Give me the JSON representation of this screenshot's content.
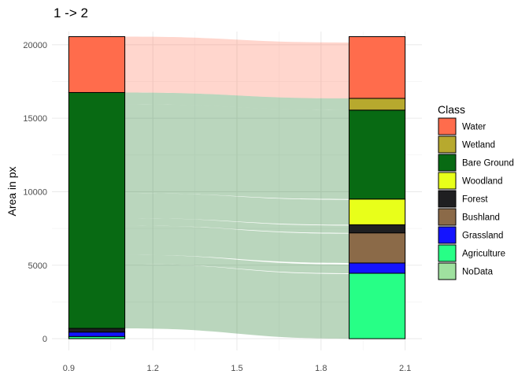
{
  "chart_data": {
    "type": "alluvial",
    "title": "1 -> 2",
    "xlabel": "",
    "ylabel": "Area in px",
    "xlim": [
      0.84,
      2.16
    ],
    "ylim": [
      -800,
      20900
    ],
    "x_ticks": [
      0.9,
      1.2,
      1.5,
      1.8,
      2.1
    ],
    "x_tick_labels": [
      "0.9",
      "1.2",
      "1.5",
      "1.8",
      "2.1"
    ],
    "y_ticks": [
      0,
      5000,
      10000,
      15000,
      20000
    ],
    "y_tick_labels": [
      "0",
      "5000",
      "10000",
      "15000",
      "20000"
    ],
    "grid": true,
    "legend": {
      "title": "Class",
      "position": "right",
      "entries": [
        "Water",
        "Wetland",
        "Bare Ground",
        "Woodland",
        "Forest",
        "Bushland",
        "Grassland",
        "Agriculture",
        "NoData"
      ]
    },
    "colors": {
      "Water": "#ff6c4c",
      "Wetland": "#b7a92e",
      "Bare Ground": "#086a13",
      "Woodland": "#e8ff1a",
      "Forest": "#1f1f21",
      "Bushland": "#8b6a48",
      "Grassland": "#1414ff",
      "Agriculture": "#27ff86",
      "NoData": "#9fe19f"
    },
    "stratum_width": 0.2,
    "axis1": {
      "x": 1.0,
      "strata": [
        {
          "class": "Agriculture",
          "value": 150
        },
        {
          "class": "Grassland",
          "value": 300
        },
        {
          "class": "Forest",
          "value": 250
        },
        {
          "class": "Bare Ground",
          "value": 16050
        },
        {
          "class": "Water",
          "value": 3800
        }
      ]
    },
    "axis2": {
      "x": 2.0,
      "strata": [
        {
          "class": "Agriculture",
          "value": 4450
        },
        {
          "class": "Grassland",
          "value": 700
        },
        {
          "class": "Bushland",
          "value": 2050
        },
        {
          "class": "Forest",
          "value": 550
        },
        {
          "class": "Woodland",
          "value": 1750
        },
        {
          "class": "Bare Ground",
          "value": 6050
        },
        {
          "class": "Wetland",
          "value": 800
        },
        {
          "class": "Water",
          "value": 4200
        }
      ]
    },
    "flows": [
      {
        "from": "Bare Ground",
        "to": "Agriculture",
        "value": 4400
      },
      {
        "from": "Bare Ground",
        "to": "Grassland",
        "value": 600
      },
      {
        "from": "Bare Ground",
        "to": "Bushland",
        "value": 2000
      },
      {
        "from": "Bare Ground",
        "to": "Forest",
        "value": 500
      },
      {
        "from": "Bare Ground",
        "to": "Woodland",
        "value": 1700
      },
      {
        "from": "Bare Ground",
        "to": "Bare Ground",
        "value": 6050
      },
      {
        "from": "Bare Ground",
        "to": "Wetland",
        "value": 800
      },
      {
        "from": "Water",
        "to": "Water",
        "value": 3800
      }
    ]
  }
}
